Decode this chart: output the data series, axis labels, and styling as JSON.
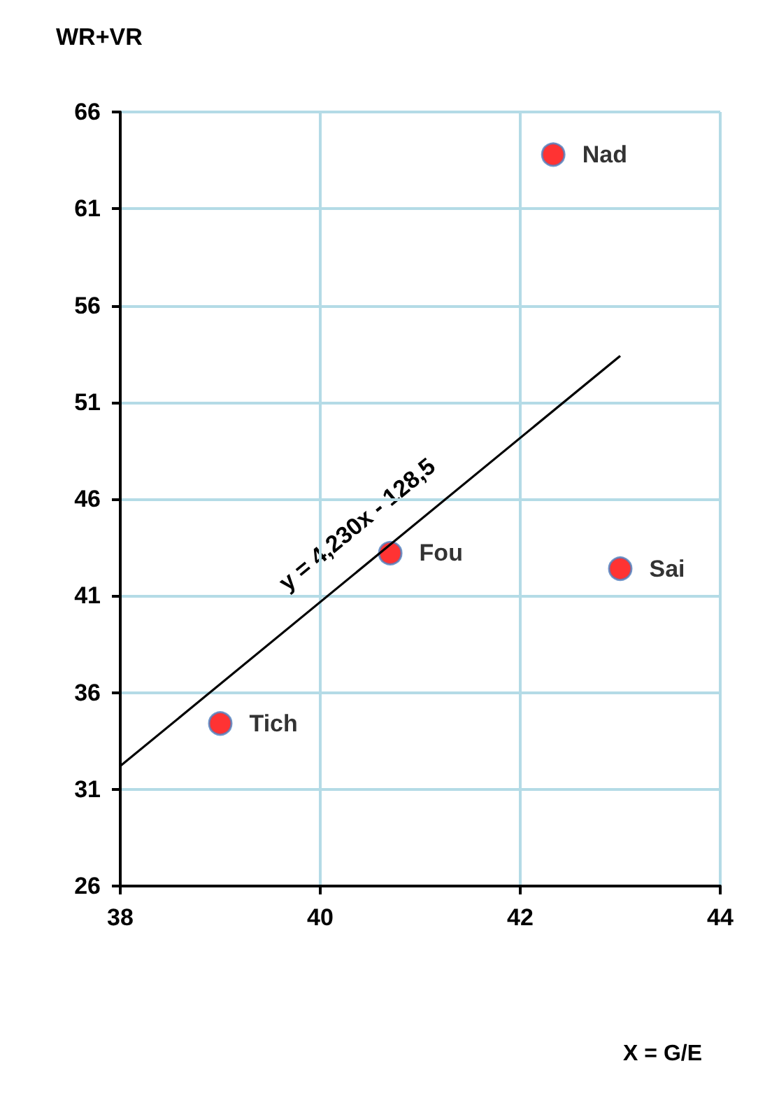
{
  "chart_data": {
    "type": "scatter",
    "ylabel": "WR+VR",
    "xlabel": "X = G/E",
    "xlim": [
      38,
      44
    ],
    "xticks": [
      38,
      40,
      42,
      44
    ],
    "ylim": [
      26,
      66
    ],
    "yticks": [
      26,
      31,
      36,
      41,
      46,
      51,
      56,
      61,
      66
    ],
    "grid": true,
    "series": [
      {
        "name": "Tich",
        "color": "#ff0000",
        "marker": "circle",
        "x": [
          39.0
        ],
        "values": [
          34.4
        ]
      },
      {
        "name": "Fou",
        "color": "#ff0000",
        "marker": "circle",
        "x": [
          40.7
        ],
        "values": [
          43.2
        ]
      },
      {
        "name": "Sai",
        "color": "#ff0000",
        "marker": "circle",
        "x": [
          43.0
        ],
        "values": [
          42.4
        ]
      },
      {
        "name": "Nad",
        "color": "#ff0000",
        "marker": "circle",
        "x": [
          42.33
        ],
        "values": [
          63.8
        ]
      },
      {
        "type": "line",
        "color": "#000000",
        "x": [
          38,
          43
        ],
        "values": [
          32.2,
          53.4
        ]
      }
    ],
    "annotations": [
      "y = 4,230x - 128,5"
    ]
  }
}
